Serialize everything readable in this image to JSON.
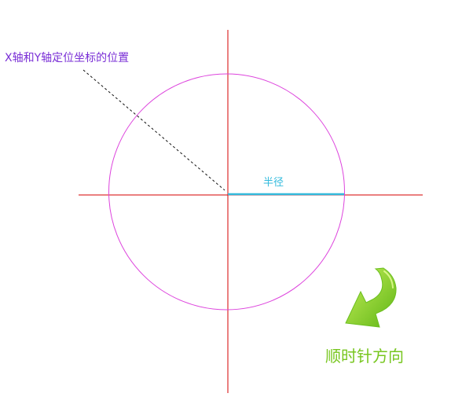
{
  "diagram": {
    "labels": {
      "position": "X轴和Y轴定位坐标的位置",
      "radius": "半径",
      "clockwise": "顺时针方向"
    },
    "colors": {
      "axis": "#d40000",
      "circle": "#dd44dd",
      "radius_line": "#33bbdd",
      "leader_line": "#111111",
      "position_label": "#7a2fd6",
      "radius_label": "#33bbdd",
      "clockwise_label": "#77c61e",
      "arrow_light": "#a8e23a",
      "arrow_dark": "#5fb515"
    },
    "icons": {
      "clockwise_arrow": "curved-arrow-icon"
    }
  }
}
